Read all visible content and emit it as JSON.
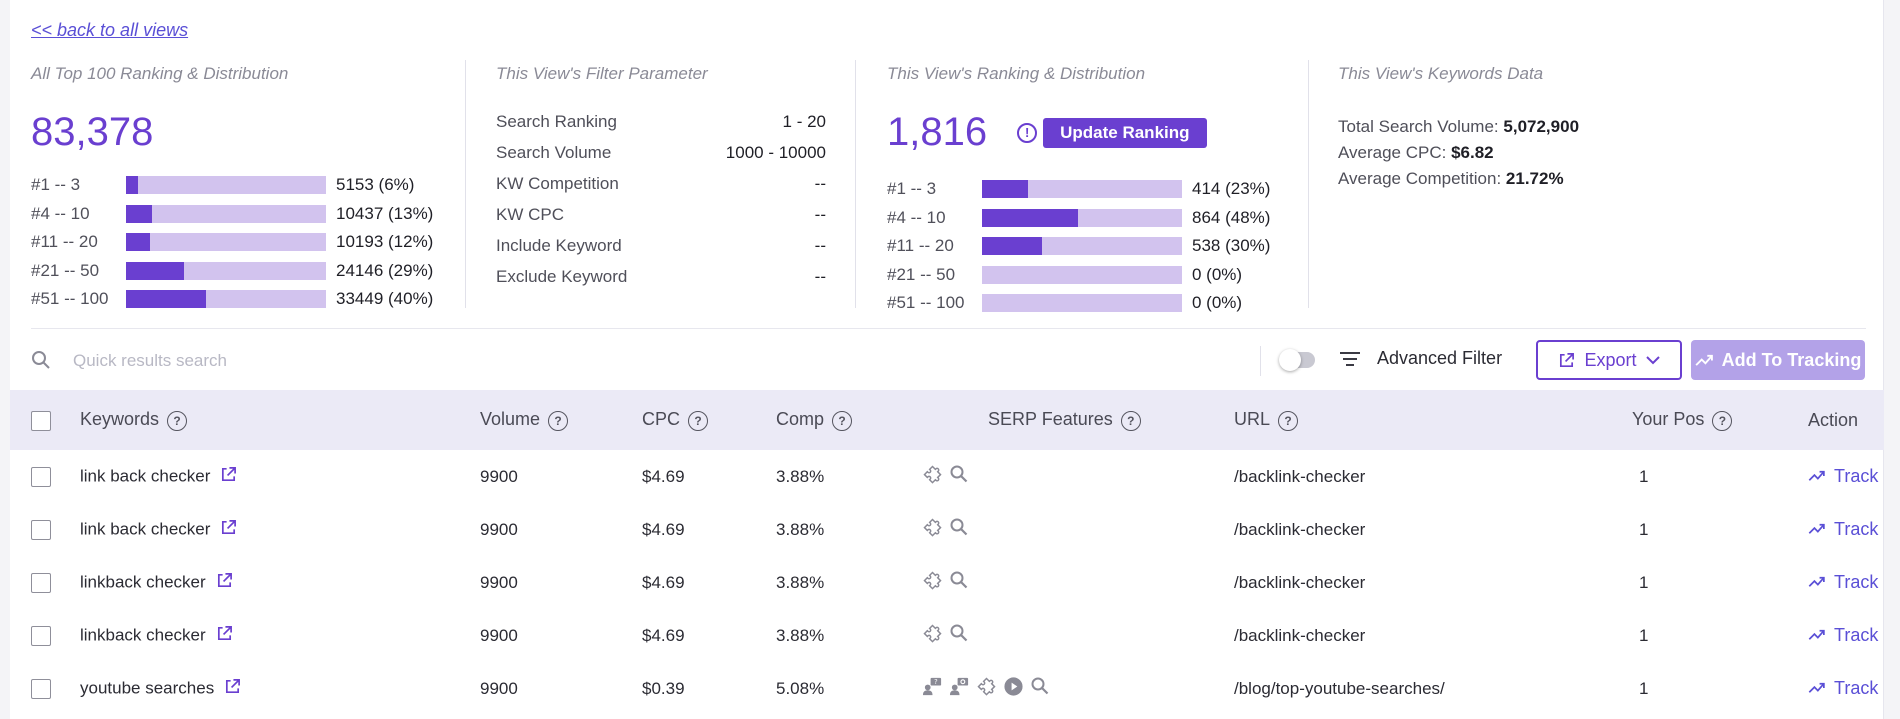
{
  "back_link": "<< back to all views",
  "all_top": {
    "title": "All Top 100 Ranking & Distribution",
    "total": "83,378",
    "rows": [
      {
        "label": "#1 -- 3",
        "value": "5153 (6%)",
        "fraction": 0.06
      },
      {
        "label": "#4 -- 10",
        "value": "10437 (13%)",
        "fraction": 0.13
      },
      {
        "label": "#11 -- 20",
        "value": "10193 (12%)",
        "fraction": 0.12
      },
      {
        "label": "#21 -- 50",
        "value": "24146 (29%)",
        "fraction": 0.29
      },
      {
        "label": "#51 -- 100",
        "value": "33449 (40%)",
        "fraction": 0.4
      }
    ]
  },
  "filter_params": {
    "title": "This View's Filter Parameter",
    "rows": [
      {
        "key": "Search Ranking",
        "value": "1 - 20"
      },
      {
        "key": "Search Volume",
        "value": "1000 - 10000"
      },
      {
        "key": "KW Competition",
        "value": "--"
      },
      {
        "key": "KW CPC",
        "value": "--"
      },
      {
        "key": "Include Keyword",
        "value": "--"
      },
      {
        "key": "Exclude Keyword",
        "value": "--"
      }
    ]
  },
  "view_ranking": {
    "title": "This View's Ranking & Distribution",
    "total": "1,816",
    "info_icon": "!",
    "update_button": "Update Ranking",
    "rows": [
      {
        "label": "#1 -- 3",
        "value": "414 (23%)",
        "fraction": 0.23
      },
      {
        "label": "#4 -- 10",
        "value": "864 (48%)",
        "fraction": 0.48
      },
      {
        "label": "#11 -- 20",
        "value": "538 (30%)",
        "fraction": 0.3
      },
      {
        "label": "#21 -- 50",
        "value": "0 (0%)",
        "fraction": 0
      },
      {
        "label": "#51 -- 100",
        "value": "0 (0%)",
        "fraction": 0
      }
    ]
  },
  "keywords_data": {
    "title": "This View's Keywords Data",
    "total_search_volume_label": "Total Search Volume:",
    "total_search_volume": "5,072,900",
    "avg_cpc_label": "Average CPC:",
    "avg_cpc": "$6.82",
    "avg_comp_label": "Average Competition:",
    "avg_comp": "21.72%"
  },
  "toolbar": {
    "search_placeholder": "Quick results search",
    "advanced_filter": "Advanced Filter",
    "export": "Export",
    "add_to_tracking": "Add To Tracking"
  },
  "table": {
    "help_glyph": "?",
    "columns": {
      "keywords": "Keywords",
      "volume": "Volume",
      "cpc": "CPC",
      "comp": "Comp",
      "serp": "SERP Features",
      "url": "URL",
      "your_pos": "Your Pos",
      "action": "Action"
    },
    "rows": [
      {
        "keyword": "link back checker",
        "volume": "9900",
        "cpc": "$4.69",
        "comp": "3.88%",
        "serp": [
          "puzzle-icon",
          "search-icon"
        ],
        "url": "/backlink-checker",
        "pos": "1",
        "action": "Track"
      },
      {
        "keyword": "link back checker",
        "volume": "9900",
        "cpc": "$4.69",
        "comp": "3.88%",
        "serp": [
          "puzzle-icon",
          "search-icon"
        ],
        "url": "/backlink-checker",
        "pos": "1",
        "action": "Track"
      },
      {
        "keyword": "linkback checker",
        "volume": "9900",
        "cpc": "$4.69",
        "comp": "3.88%",
        "serp": [
          "puzzle-icon",
          "search-icon"
        ],
        "url": "/backlink-checker",
        "pos": "1",
        "action": "Track"
      },
      {
        "keyword": "linkback checker",
        "volume": "9900",
        "cpc": "$4.69",
        "comp": "3.88%",
        "serp": [
          "puzzle-icon",
          "search-icon"
        ],
        "url": "/backlink-checker",
        "pos": "1",
        "action": "Track"
      },
      {
        "keyword": "youtube searches",
        "volume": "9900",
        "cpc": "$0.39",
        "comp": "5.08%",
        "serp": [
          "people-also-ask-icon",
          "related-questions-icon",
          "puzzle-icon",
          "video-icon",
          "search-icon"
        ],
        "url": "/blog/top-youtube-searches/",
        "pos": "1",
        "action": "Track"
      }
    ]
  },
  "colors": {
    "accent": "#6a3fd0",
    "bar_track": "#d2c3ee",
    "header_bg": "#ebeaf6"
  }
}
